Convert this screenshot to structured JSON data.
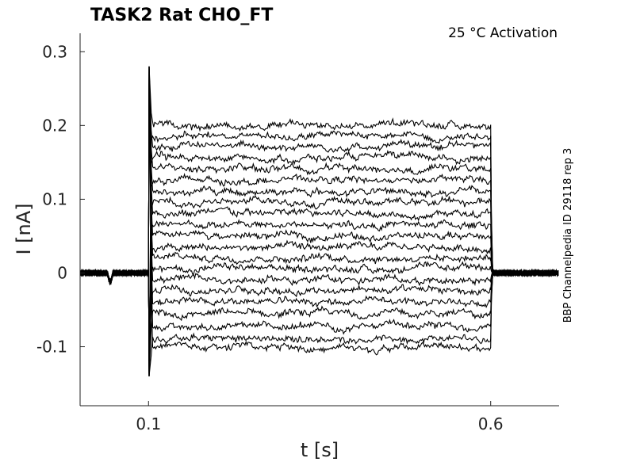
{
  "chart_data": {
    "type": "line",
    "title": "TASK2  Rat  CHO_FT",
    "annotation": "25 °C  Activation",
    "side_label": "BBP Channelpedia ID 29118 rep 3",
    "xlabel": "t [s]",
    "ylabel": "I [nA]",
    "xlim": [
      0.0,
      0.7
    ],
    "ylim": [
      -0.18,
      0.325
    ],
    "x_ticks": [
      0.1,
      0.6
    ],
    "x_tick_labels": [
      "0.1",
      "0.6"
    ],
    "y_ticks": [
      -0.1,
      0,
      0.1,
      0.2,
      0.3
    ],
    "y_tick_labels": [
      "-0.1",
      "0",
      "0.1",
      "0.2",
      "0.3"
    ],
    "grid": false,
    "legend": "none",
    "step_on": 0.1,
    "step_off": 0.6,
    "baseline": 0.0,
    "sweep_levels": [
      -0.101,
      -0.089,
      -0.073,
      -0.055,
      -0.039,
      -0.023,
      -0.009,
      0.006,
      0.021,
      0.034,
      0.05,
      0.065,
      0.081,
      0.096,
      0.11,
      0.126,
      0.142,
      0.156,
      0.172,
      0.186,
      0.201
    ],
    "onset_peak": 0.28,
    "onset_trough": -0.14,
    "line_color": "#000000"
  }
}
